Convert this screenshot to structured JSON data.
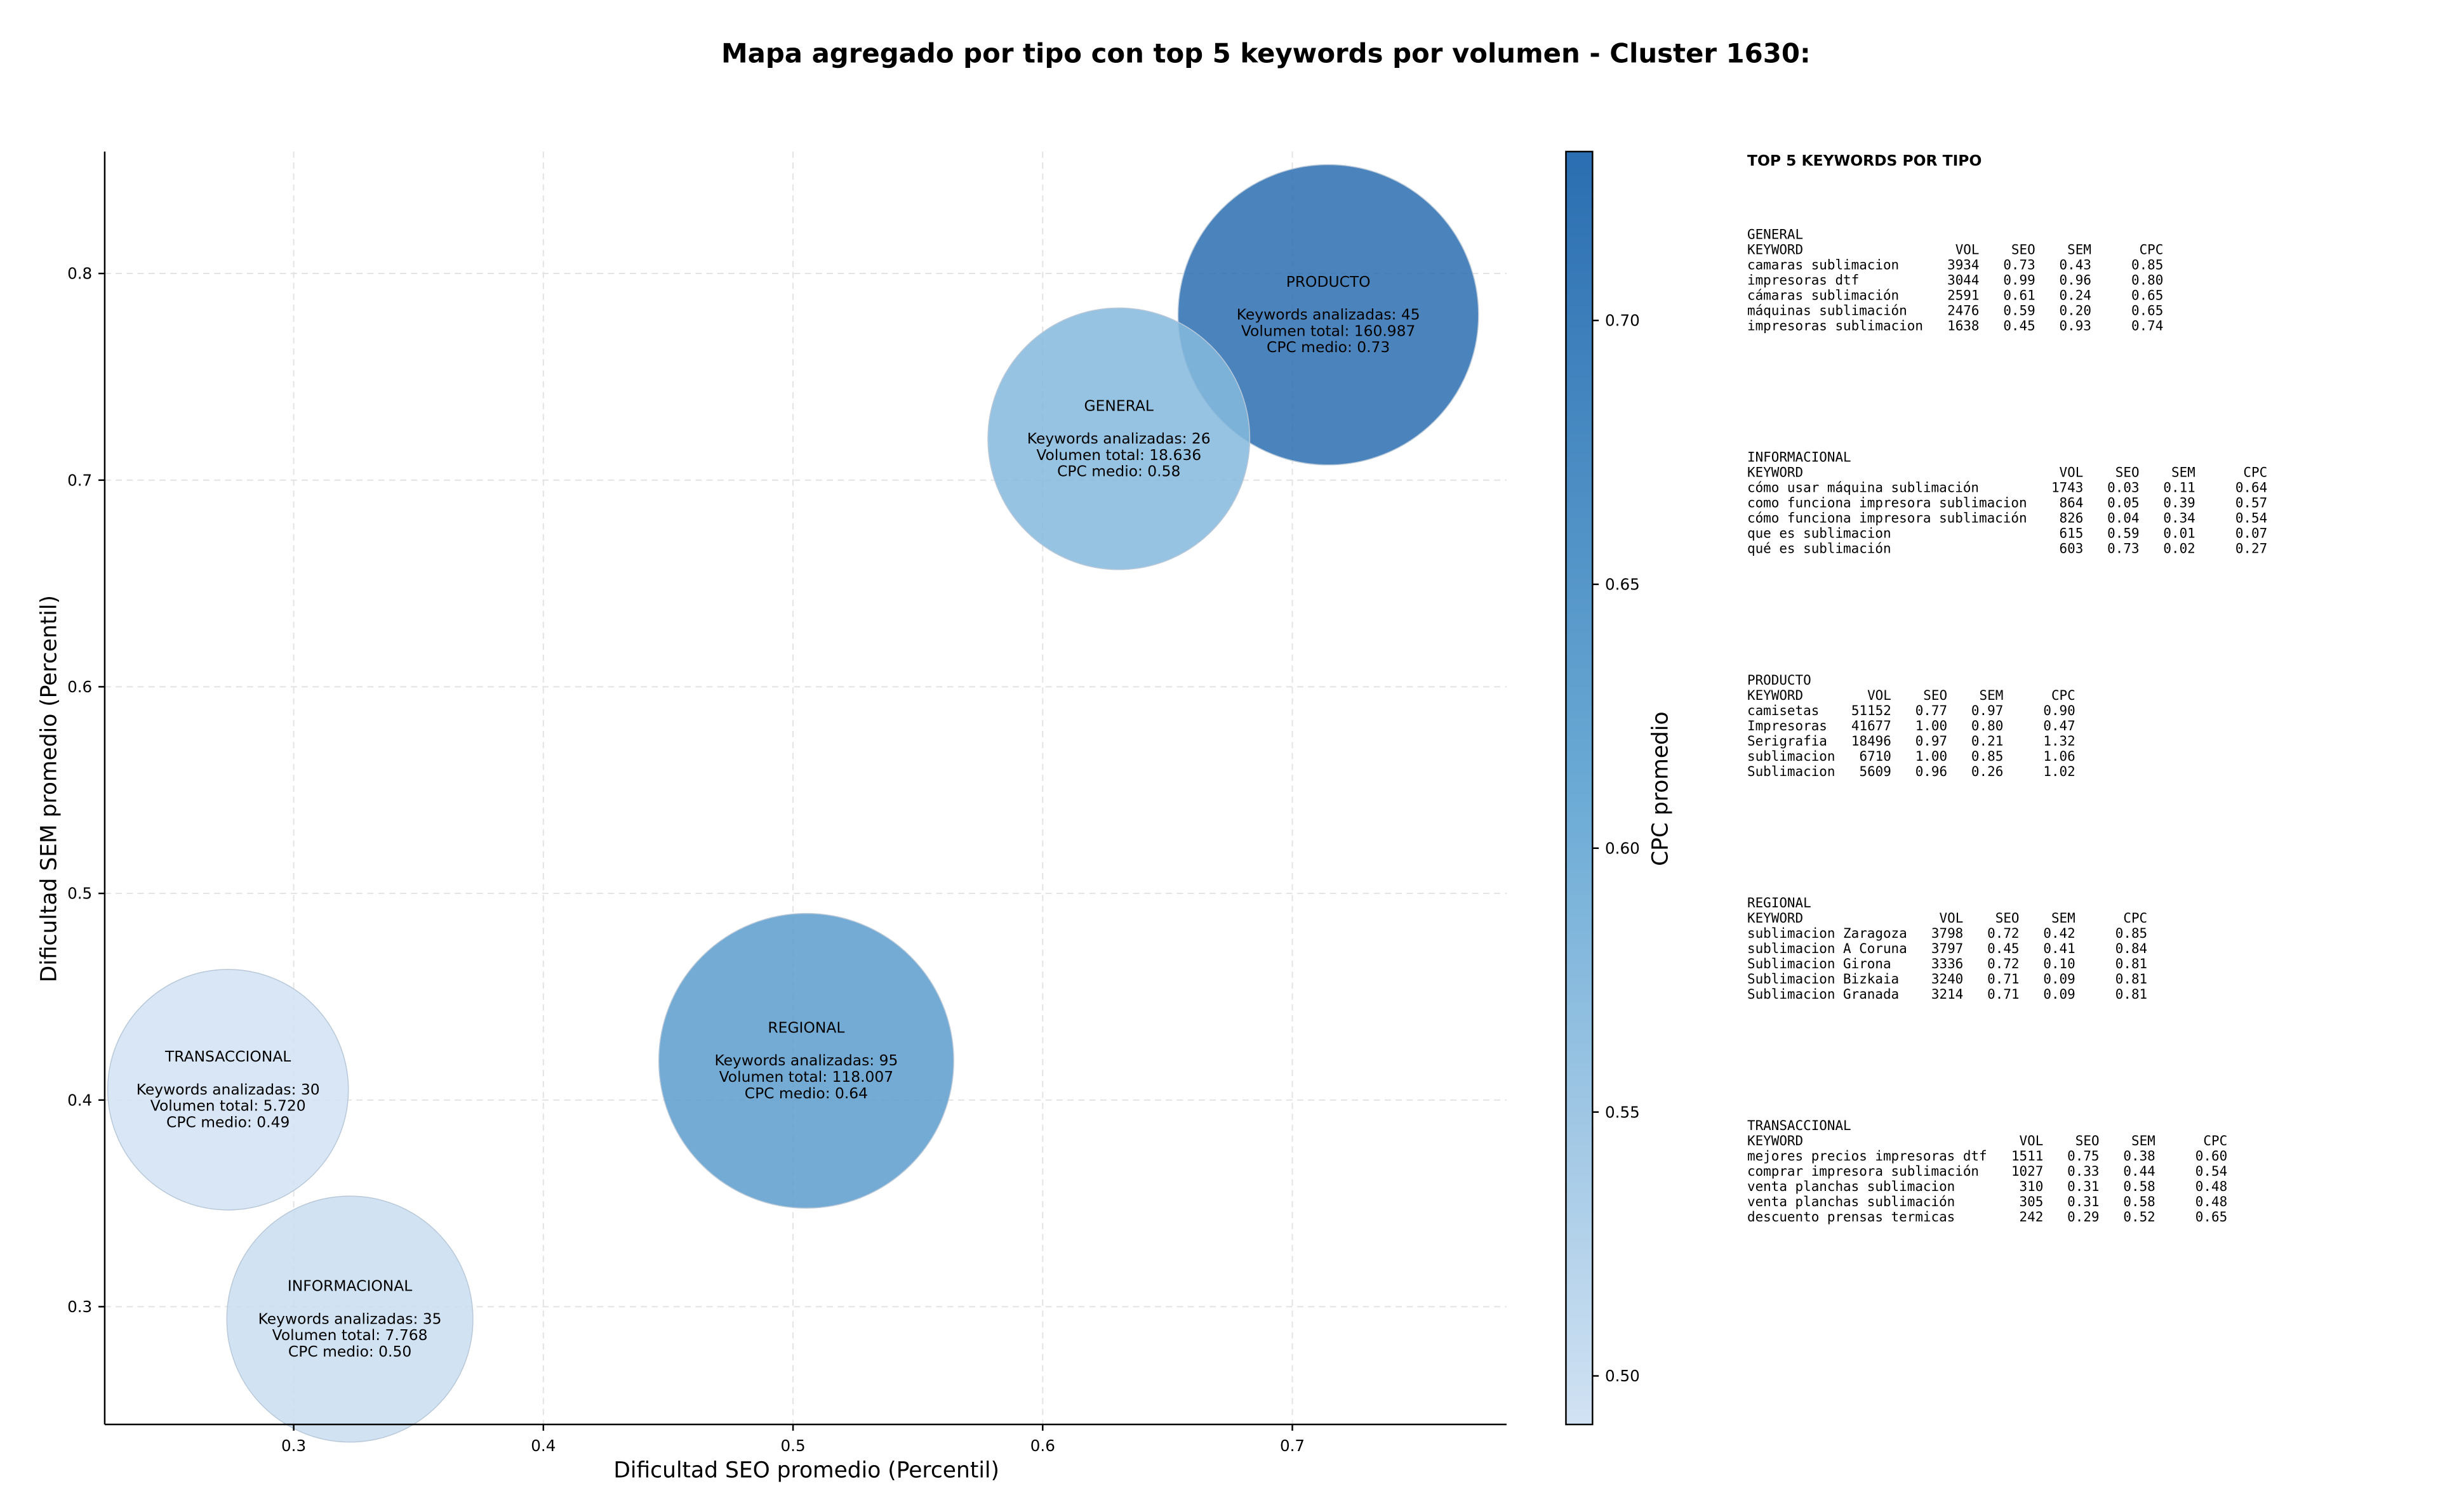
{
  "chart_data": {
    "type": "bubble",
    "title": "Mapa agregado por tipo con top 5 keywords por volumen - Cluster 1630:",
    "xlabel": "Dificultad SEO promedio (Percentil)",
    "ylabel": "Dificultad SEM promedio (Percentil)",
    "colorbar_label": "CPC promedio",
    "keywords_label": "Keywords analizadas:",
    "volume_label": "Volumen total:",
    "cpc_label": "CPC medio:",
    "categories": [
      "PRODUCTO",
      "GENERAL",
      "REGIONAL",
      "TRANSACCIONAL",
      "INFORMACIONAL"
    ],
    "x": [
      0.7144,
      0.6305,
      0.5053,
      0.2737,
      0.3225
    ],
    "y": [
      0.78,
      0.72,
      0.419,
      0.405,
      0.294
    ],
    "keywords": [
      45,
      26,
      95,
      30,
      35
    ],
    "volumes": [
      160987,
      18636,
      118007,
      5720,
      7768
    ],
    "volume_labels": [
      "160.987",
      "18.636",
      "118.007",
      "5.720",
      "7.768"
    ],
    "cpc": [
      0.73,
      0.58,
      0.64,
      0.49,
      0.5
    ],
    "cpc_labels": [
      "0.73",
      "0.58",
      "0.64",
      "0.49",
      "0.50"
    ],
    "xlim": [
      0.2243,
      0.7858
    ],
    "ylim": [
      0.243,
      0.859
    ],
    "xticks": [
      0.3,
      0.4,
      0.5,
      0.6,
      0.7
    ],
    "yticks": [
      0.3,
      0.4,
      0.5,
      0.6,
      0.7,
      0.8
    ],
    "clim": [
      0.4908,
      0.732
    ],
    "cticks": [
      {
        "value": 0.5,
        "label": "0.50"
      },
      {
        "value": 0.55,
        "label": "0.55"
      },
      {
        "value": 0.6,
        "label": "0.60"
      },
      {
        "value": 0.65,
        "label": "0.65"
      },
      {
        "value": 0.7,
        "label": "0.70"
      }
    ],
    "colormap": [
      "#d1e2f3",
      "#6aaad5",
      "#2b6eb1"
    ],
    "grid": true
  },
  "panel": {
    "title": "TOP 5 KEYWORDS POR TIPO",
    "columns": [
      "KEYWORD",
      "VOL",
      "SEO",
      "SEM",
      "CPC"
    ],
    "sections": [
      {
        "name": "GENERAL",
        "rows": [
          [
            "camaras sublimacion",
            "3934",
            "0.73",
            "0.43",
            "0.85"
          ],
          [
            "impresoras dtf",
            "3044",
            "0.99",
            "0.96",
            "0.80"
          ],
          [
            "cámaras sublimación",
            "2591",
            "0.61",
            "0.24",
            "0.65"
          ],
          [
            "máquinas sublimación",
            "2476",
            "0.59",
            "0.20",
            "0.65"
          ],
          [
            "impresoras sublimacion",
            "1638",
            "0.45",
            "0.93",
            "0.74"
          ]
        ]
      },
      {
        "name": "INFORMACIONAL",
        "rows": [
          [
            "cómo usar máquina sublimación",
            "1743",
            "0.03",
            "0.11",
            "0.64"
          ],
          [
            "como funciona impresora sublimacion",
            "864",
            "0.05",
            "0.39",
            "0.57"
          ],
          [
            "cómo funciona impresora sublimación",
            "826",
            "0.04",
            "0.34",
            "0.54"
          ],
          [
            "que es sublimacion",
            "615",
            "0.59",
            "0.01",
            "0.07"
          ],
          [
            "qué es sublimación",
            "603",
            "0.73",
            "0.02",
            "0.27"
          ]
        ]
      },
      {
        "name": "PRODUCTO",
        "rows": [
          [
            "camisetas",
            "51152",
            "0.77",
            "0.97",
            "0.90"
          ],
          [
            "Impresoras",
            "41677",
            "1.00",
            "0.80",
            "0.47"
          ],
          [
            "Serigrafia",
            "18496",
            "0.97",
            "0.21",
            "1.32"
          ],
          [
            "sublimacion",
            "6710",
            "1.00",
            "0.85",
            "1.06"
          ],
          [
            "Sublimacion",
            "5609",
            "0.96",
            "0.26",
            "1.02"
          ]
        ]
      },
      {
        "name": "REGIONAL",
        "rows": [
          [
            "sublimacion Zaragoza",
            "3798",
            "0.72",
            "0.42",
            "0.85"
          ],
          [
            "sublimacion A Coruna",
            "3797",
            "0.45",
            "0.41",
            "0.84"
          ],
          [
            "Sublimacion Girona",
            "3336",
            "0.72",
            "0.10",
            "0.81"
          ],
          [
            "Sublimacion Bizkaia",
            "3240",
            "0.71",
            "0.09",
            "0.81"
          ],
          [
            "Sublimacion Granada",
            "3214",
            "0.71",
            "0.09",
            "0.81"
          ]
        ]
      },
      {
        "name": "TRANSACCIONAL",
        "rows": [
          [
            "mejores precios impresoras dtf",
            "1511",
            "0.75",
            "0.38",
            "0.60"
          ],
          [
            "comprar impresora sublimación",
            "1027",
            "0.33",
            "0.44",
            "0.54"
          ],
          [
            "venta planchas sublimacion",
            "310",
            "0.31",
            "0.58",
            "0.48"
          ],
          [
            "venta planchas sublimación",
            "305",
            "0.31",
            "0.58",
            "0.48"
          ],
          [
            "descuento prensas termicas",
            "242",
            "0.29",
            "0.52",
            "0.65"
          ]
        ]
      }
    ]
  }
}
